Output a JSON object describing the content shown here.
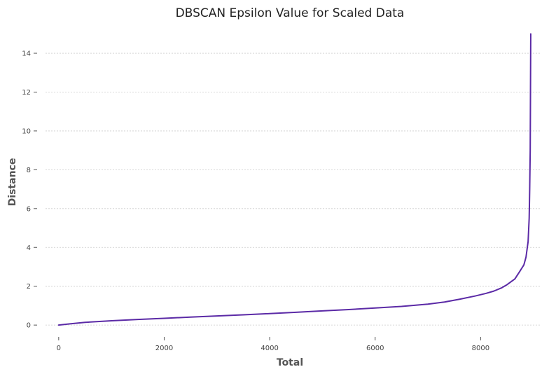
{
  "chart_data": {
    "type": "line",
    "title": "DBSCAN Epsilon Value for Scaled Data",
    "xlabel": "Total",
    "ylabel": "Distance",
    "xlim": [
      -250,
      9150
    ],
    "ylim": [
      -0.5,
      15.3
    ],
    "xticks": [
      0,
      2000,
      4000,
      6000,
      8000
    ],
    "yticks": [
      0,
      2,
      4,
      6,
      8,
      10,
      12,
      14
    ],
    "grid": "horizontal",
    "line_color": "#5b2aa6",
    "series": [
      {
        "x": [
          0,
          200,
          500,
          1000,
          1500,
          2000,
          2500,
          3000,
          3500,
          4000,
          4500,
          5000,
          5500,
          6000,
          6500,
          7000,
          7300,
          7600,
          7900,
          8100,
          8250,
          8400,
          8500,
          8650,
          8750,
          8820,
          8860,
          8880,
          8900,
          8920,
          8930,
          8940,
          8945,
          8950
        ],
        "y": [
          0.0,
          0.06,
          0.14,
          0.22,
          0.29,
          0.35,
          0.41,
          0.47,
          0.53,
          0.59,
          0.66,
          0.73,
          0.8,
          0.88,
          0.96,
          1.08,
          1.18,
          1.33,
          1.5,
          1.63,
          1.75,
          1.92,
          2.08,
          2.38,
          2.8,
          3.1,
          3.5,
          3.9,
          4.3,
          5.5,
          7.0,
          9.0,
          12.0,
          15.0
        ]
      }
    ]
  }
}
